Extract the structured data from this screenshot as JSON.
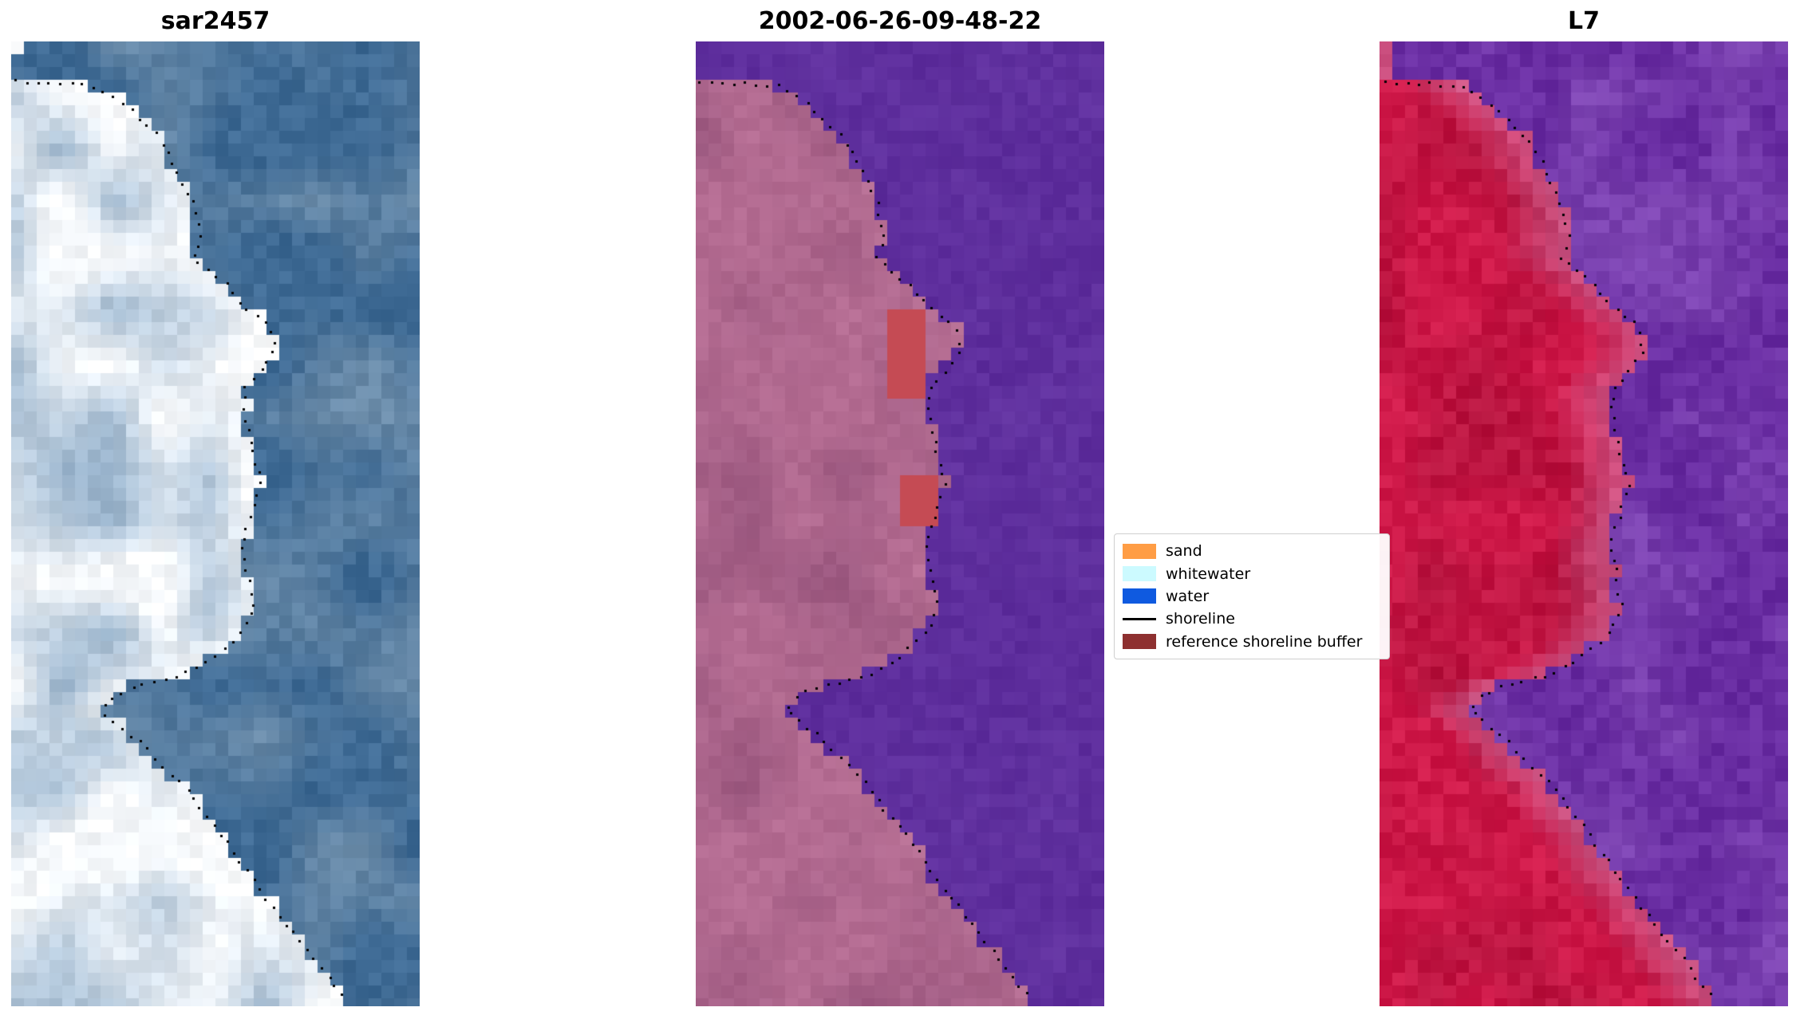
{
  "figure": {
    "background": "#ffffff",
    "panels": [
      {
        "title": "sar2457"
      },
      {
        "title": "2002-06-26-09-48-22"
      },
      {
        "title": "L7"
      }
    ],
    "legend": {
      "items": [
        {
          "label": "sand",
          "color": "#ff9d45",
          "type": "patch"
        },
        {
          "label": "whitewater",
          "color": "#ccfaff",
          "type": "patch"
        },
        {
          "label": "water",
          "color": "#0f5ae0",
          "type": "patch"
        },
        {
          "label": "shoreline",
          "color": "#000000",
          "type": "line"
        },
        {
          "label": "reference shoreline buffer",
          "color": "#8e3030",
          "type": "patch"
        }
      ]
    }
  },
  "chart_data": {
    "type": "heatmap",
    "description": "Three coregistered pixelated coastal satellite image panels with a detected shoreline drawn as a black dotted line: a SAR backscatter image (blue/white), a classified optical image dated 2002-06-26-09-48-22 (mauve land over purple water with red reference-shoreline-buffer patches), and a Landsat 7 false-color image (crimson land over purple water).",
    "legend_classes": [
      "sand",
      "whitewater",
      "water",
      "shoreline",
      "reference shoreline buffer"
    ],
    "shoreline_path_normalized": [
      [
        0.01,
        0.04
      ],
      [
        0.2,
        0.045
      ],
      [
        0.26,
        0.06
      ],
      [
        0.3,
        0.075
      ],
      [
        0.36,
        0.1
      ],
      [
        0.4,
        0.13
      ],
      [
        0.44,
        0.165
      ],
      [
        0.46,
        0.2
      ],
      [
        0.44,
        0.225
      ],
      [
        0.52,
        0.25
      ],
      [
        0.56,
        0.27
      ],
      [
        0.63,
        0.295
      ],
      [
        0.645,
        0.32
      ],
      [
        0.6,
        0.345
      ],
      [
        0.565,
        0.36
      ],
      [
        0.575,
        0.4
      ],
      [
        0.59,
        0.43
      ],
      [
        0.61,
        0.455
      ],
      [
        0.585,
        0.49
      ],
      [
        0.56,
        0.52
      ],
      [
        0.575,
        0.55
      ],
      [
        0.59,
        0.585
      ],
      [
        0.555,
        0.615
      ],
      [
        0.5,
        0.635
      ],
      [
        0.42,
        0.655
      ],
      [
        0.3,
        0.668
      ],
      [
        0.25,
        0.677
      ],
      [
        0.22,
        0.693
      ],
      [
        0.3,
        0.72
      ],
      [
        0.36,
        0.745
      ],
      [
        0.42,
        0.77
      ],
      [
        0.47,
        0.8
      ],
      [
        0.52,
        0.825
      ],
      [
        0.56,
        0.85
      ],
      [
        0.6,
        0.875
      ],
      [
        0.65,
        0.9
      ],
      [
        0.7,
        0.93
      ],
      [
        0.76,
        0.96
      ],
      [
        0.82,
        0.995
      ]
    ],
    "dot_spacing_px": 14,
    "dot_size_px": 3,
    "panels": [
      {
        "title": "sar2457",
        "seed": 7,
        "block": 16,
        "water_base": [
          62,
          106,
          148
        ],
        "water_alt": [
          128,
          156,
          180
        ],
        "water_bias": 0.3,
        "water_mix": 1.1,
        "land_base": [
          246,
          249,
          252
        ],
        "land_alt": [
          140,
          170,
          198
        ],
        "land_bias": 0.3,
        "land_mix": 1.3,
        "edge_color": [
          255,
          255,
          255
        ],
        "edge_width": 0.12,
        "edge_strength": 0.7,
        "grain": 12
      },
      {
        "title": "2002-06-26-09-48-22",
        "seed": 12,
        "block": 16,
        "water_base": [
          93,
          45,
          156
        ],
        "water_alt": [
          103,
          57,
          165
        ],
        "water_bias": 0.3,
        "water_mix": 0.9,
        "land_base": [
          180,
          108,
          146
        ],
        "land_alt": [
          143,
          78,
          118
        ],
        "land_bias": 0.25,
        "land_mix": 1.0,
        "edge_color": [
          205,
          135,
          165
        ],
        "edge_width": 0.05,
        "edge_strength": 0.25,
        "grain": 7,
        "patches": [
          {
            "x0": 0.455,
            "x1": 0.55,
            "y0": 0.283,
            "y1": 0.366,
            "color": [
              197,
              75,
              84
            ]
          },
          {
            "x0": 0.5,
            "x1": 0.585,
            "y0": 0.448,
            "y1": 0.508,
            "color": [
              197,
              75,
              84
            ]
          }
        ]
      },
      {
        "title": "L7",
        "seed": 23,
        "block": 16,
        "water_base": [
          105,
          45,
          162
        ],
        "water_alt": [
          142,
          88,
          192
        ],
        "water_bias": 0.4,
        "water_mix": 1.1,
        "land_base": [
          206,
          24,
          72
        ],
        "land_alt": [
          160,
          14,
          52
        ],
        "land_bias": 0.35,
        "land_mix": 1.0,
        "edge_color": [
          209,
          118,
          166
        ],
        "edge_width": 0.14,
        "edge_strength": 0.65,
        "grain": 12
      }
    ]
  }
}
